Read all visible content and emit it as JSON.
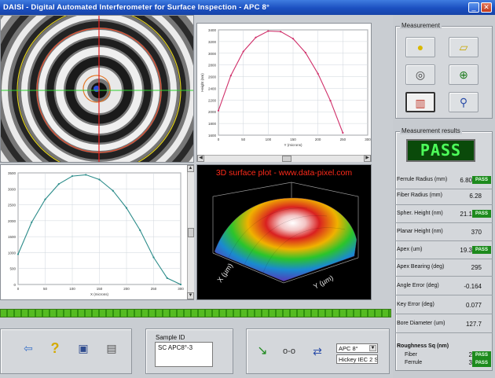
{
  "window": {
    "title": "DAISI - Digital Automated Interferometer for Surface Inspection - APC 8°",
    "minimize_icon": "minimize-icon",
    "close_icon": "close-icon"
  },
  "plot3d": {
    "title": "3D surface plot - www.data-pixel.com",
    "x_axis": "X (µm)",
    "y_axis": "Y (µm)"
  },
  "chart_data": [
    {
      "type": "line",
      "name": "top-profile",
      "xlabel": "Y (microns)",
      "ylabel": "Height (nm)",
      "x_ticks": [
        0,
        50,
        100,
        150,
        200,
        250,
        300
      ],
      "y_ticks": [
        1600,
        1800,
        2000,
        2200,
        2400,
        2600,
        2800,
        3000,
        3200,
        3400
      ],
      "xlim": [
        0,
        300
      ],
      "ylim": [
        1600,
        3400
      ],
      "x": [
        0,
        25,
        50,
        75,
        100,
        125,
        150,
        175,
        200,
        225,
        250
      ],
      "y": [
        2020,
        2620,
        3030,
        3270,
        3380,
        3370,
        3250,
        3010,
        2650,
        2190,
        1640
      ],
      "color": "#d0306a"
    },
    {
      "type": "line",
      "name": "left-profile",
      "xlabel": "X (microns)",
      "ylabel": "",
      "x_ticks": [
        0,
        50,
        100,
        150,
        200,
        250,
        300
      ],
      "y_ticks": [
        0,
        500,
        1000,
        1500,
        2000,
        2500,
        3000,
        3500
      ],
      "xlim": [
        0,
        300
      ],
      "ylim": [
        0,
        3500
      ],
      "x": [
        0,
        25,
        50,
        75,
        100,
        125,
        150,
        175,
        200,
        225,
        250,
        275,
        300
      ],
      "y": [
        950,
        1950,
        2670,
        3150,
        3400,
        3440,
        3290,
        2940,
        2400,
        1700,
        850,
        200,
        0
      ],
      "color": "#2c8c8a"
    }
  ],
  "progress": {
    "fraction": 1.0
  },
  "toolbar_left": {
    "icons": [
      "exit-icon",
      "help-icon",
      "save-icon",
      "report-icon"
    ]
  },
  "sample": {
    "label": "Sample ID",
    "value": "SC APC8°-3"
  },
  "toolbar_mid": {
    "icons": [
      "probe-icon",
      "glasses-icon",
      "swap-icon"
    ],
    "dropdown1": "APC 8°",
    "dropdown2": "Hickey IEC 2 Sm"
  },
  "measurement": {
    "label": "Measurement",
    "buttons": [
      "target-icon",
      "ruler-icon",
      "camera-settings-icon",
      "crosshair-icon",
      "compare-icon",
      "magnifier-icon"
    ]
  },
  "results": {
    "label": "Measurement results",
    "status": "PASS",
    "pass_badge": "PASS",
    "rows": [
      {
        "label": "Ferrule Radius (mm)",
        "value": "6.80",
        "badge": true
      },
      {
        "label": "Fiber Radius (mm)",
        "value": "6.28",
        "badge": false
      },
      {
        "label": "Spher. Height (nm)",
        "value": "21.1",
        "badge": true
      },
      {
        "label": "Planar Height (nm)",
        "value": "370",
        "badge": false
      },
      {
        "label": "Apex (um)",
        "value": "19.3",
        "badge": true
      },
      {
        "label": "Apex Bearing (deg)",
        "value": "295",
        "badge": false
      },
      {
        "label": "Angle Error (deg)",
        "value": "-0.164",
        "badge": false
      },
      {
        "label": "Key Error (deg)",
        "value": "0.077",
        "badge": false
      },
      {
        "label": "Bore Diameter (um)",
        "value": "127.7",
        "badge": false
      }
    ],
    "roughness": {
      "label": "Roughness Sq (nm)",
      "fiber_label": "Fiber",
      "fiber_value": "2",
      "ferrule_label": "Ferrule",
      "ferrule_value": "3"
    }
  }
}
